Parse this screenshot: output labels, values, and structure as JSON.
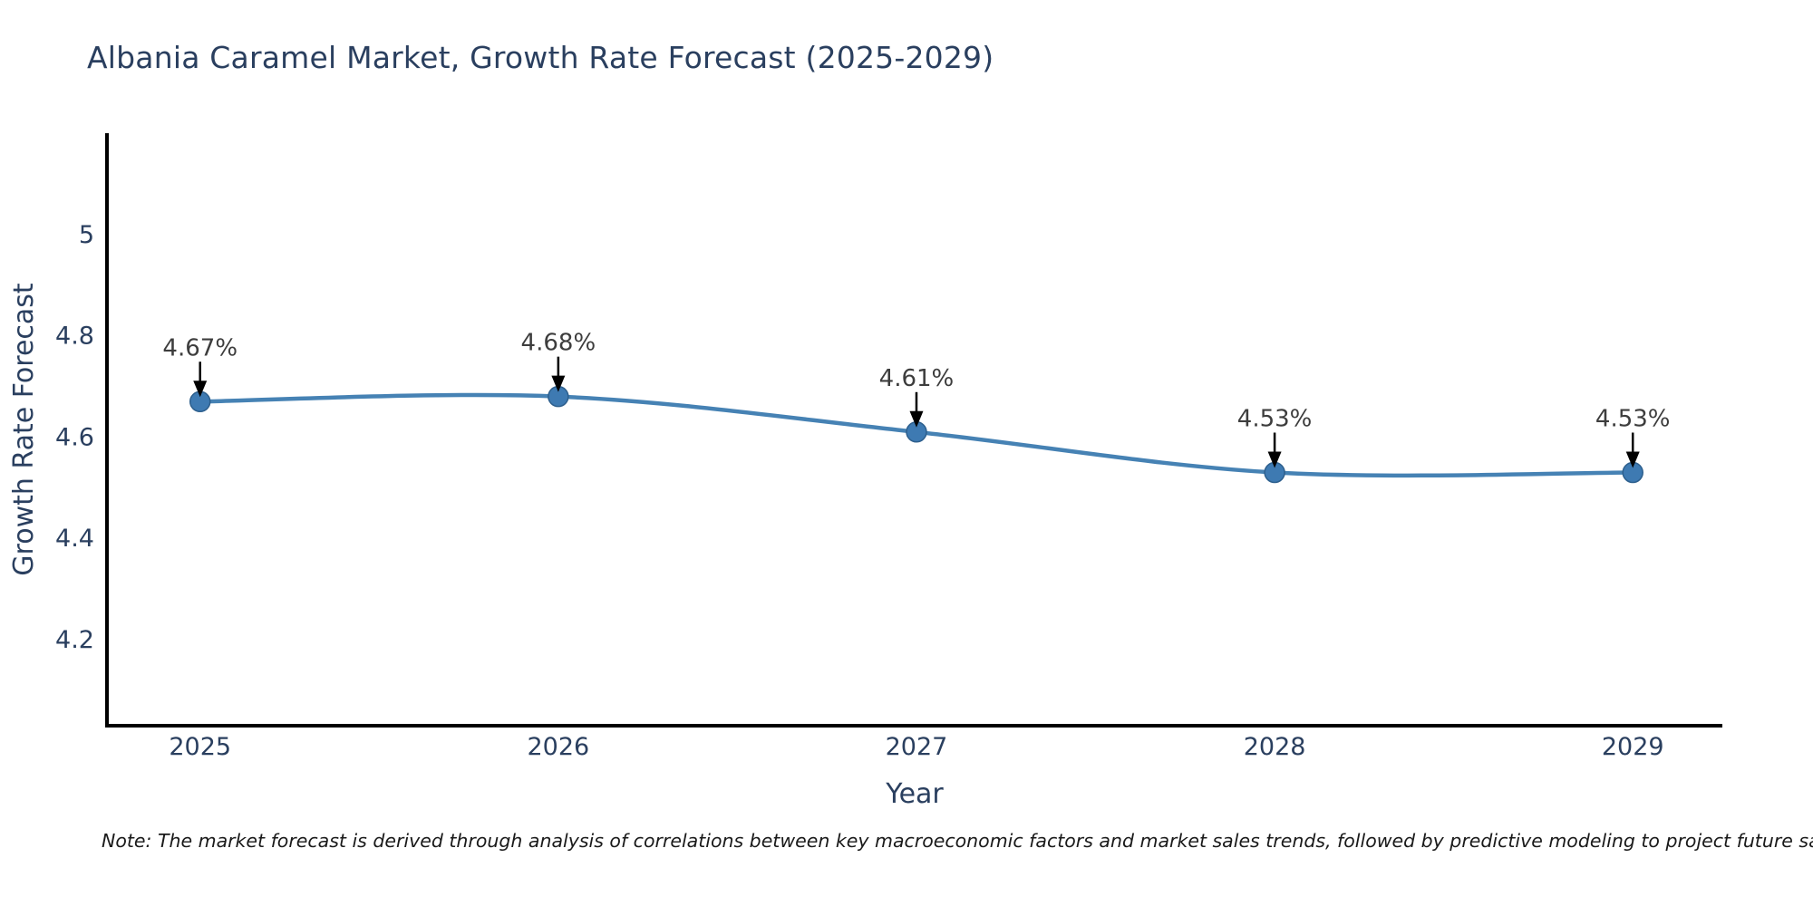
{
  "title": "Albania Caramel Market, Growth Rate Forecast (2025-2029)",
  "note": "Note: The market forecast is derived through analysis of correlations between key macroeconomic factors and market sales trends, followed by predictive modeling to project future sales",
  "chart_data": {
    "type": "line",
    "title": "Albania Caramel Market, Growth Rate Forecast (2025-2029)",
    "xlabel": "Year",
    "ylabel": "Growth Rate Forecast",
    "x": [
      2025,
      2026,
      2027,
      2028,
      2029
    ],
    "series": [
      {
        "name": "Growth Rate Forecast",
        "values": [
          4.67,
          4.68,
          4.61,
          4.53,
          4.53
        ]
      }
    ],
    "point_labels": [
      "4.67%",
      "4.68%",
      "4.61%",
      "4.53%",
      "4.53%"
    ],
    "yticks": [
      4.2,
      4.4,
      4.6,
      4.8,
      5
    ],
    "xlim": [
      2024.74,
      2029.25
    ],
    "ylim": [
      4.03,
      5.2
    ],
    "grid": false,
    "legend": "none",
    "annotation_style": "black-down-arrows",
    "colors": {
      "line": "#4682b4",
      "marker": "#3e7ab2",
      "marker_edge": "#2d5f8d",
      "axis": "#000000",
      "tick_text": "#2a3f5f",
      "axis_title_text": "#2a3f5f",
      "annotation_text": "#3d3d3d",
      "annotation_arrow": "#000000",
      "title_text": "#2a3f5f",
      "background": "#ffffff"
    }
  }
}
